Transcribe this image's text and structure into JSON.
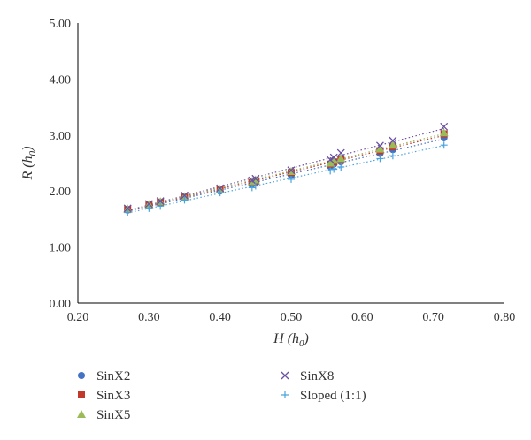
{
  "chart_data": {
    "type": "scatter",
    "title": "",
    "xlabel": {
      "main": "H (",
      "sub": "h0",
      "subtext": "0",
      "close": ")"
    },
    "ylabel": {
      "main": "R (",
      "sub": "h0",
      "subtext": "0",
      "close": ")"
    },
    "xlim": [
      0.2,
      0.8
    ],
    "ylim": [
      0.0,
      5.0
    ],
    "x_ticks": [
      "0.20",
      "0.30",
      "0.40",
      "0.50",
      "0.60",
      "0.70",
      "0.80"
    ],
    "y_ticks": [
      "0.00",
      "1.00",
      "2.00",
      "3.00",
      "4.00",
      "5.00"
    ],
    "grid": false,
    "legend_position": "bottom",
    "trendlines": "dotted linear per series",
    "series": [
      {
        "name": "SinX2",
        "marker": "circle",
        "color": "#4472c4",
        "x": [
          0.27,
          0.3,
          0.316,
          0.35,
          0.4,
          0.445,
          0.45,
          0.5,
          0.555,
          0.56,
          0.57,
          0.625,
          0.643,
          0.715
        ],
        "y": [
          1.66,
          1.73,
          1.78,
          1.88,
          2.0,
          2.12,
          2.15,
          2.28,
          2.44,
          2.48,
          2.52,
          2.67,
          2.74,
          2.95
        ]
      },
      {
        "name": "SinX3",
        "marker": "square",
        "color": "#c0392b",
        "x": [
          0.27,
          0.3,
          0.316,
          0.35,
          0.4,
          0.445,
          0.45,
          0.5,
          0.555,
          0.56,
          0.57,
          0.625,
          0.643,
          0.715
        ],
        "y": [
          1.67,
          1.75,
          1.8,
          1.89,
          2.02,
          2.15,
          2.18,
          2.33,
          2.48,
          2.52,
          2.56,
          2.72,
          2.79,
          3.02
        ]
      },
      {
        "name": "SinX5",
        "marker": "triangle",
        "color": "#9bbb59",
        "x": [
          0.27,
          0.3,
          0.316,
          0.35,
          0.4,
          0.445,
          0.45,
          0.5,
          0.555,
          0.56,
          0.57,
          0.625,
          0.643,
          0.715
        ],
        "y": [
          1.68,
          1.76,
          1.81,
          1.9,
          2.03,
          2.17,
          2.2,
          2.35,
          2.5,
          2.55,
          2.58,
          2.75,
          2.82,
          3.04
        ]
      },
      {
        "name": "SinX8",
        "marker": "x",
        "color": "#6a4fa3",
        "x": [
          0.27,
          0.3,
          0.316,
          0.35,
          0.4,
          0.445,
          0.45,
          0.5,
          0.555,
          0.56,
          0.57,
          0.625,
          0.643,
          0.715
        ],
        "y": [
          1.69,
          1.77,
          1.82,
          1.92,
          2.05,
          2.19,
          2.22,
          2.37,
          2.56,
          2.6,
          2.68,
          2.81,
          2.9,
          3.15
        ]
      },
      {
        "name": "Sloped (1:1)",
        "marker": "plus",
        "color": "#4aa3df",
        "x": [
          0.27,
          0.3,
          0.316,
          0.35,
          0.4,
          0.445,
          0.45,
          0.5,
          0.555,
          0.56,
          0.57,
          0.625,
          0.643,
          0.715
        ],
        "y": [
          1.62,
          1.69,
          1.73,
          1.84,
          1.97,
          2.06,
          2.09,
          2.21,
          2.36,
          2.39,
          2.43,
          2.58,
          2.63,
          2.82
        ]
      }
    ]
  }
}
